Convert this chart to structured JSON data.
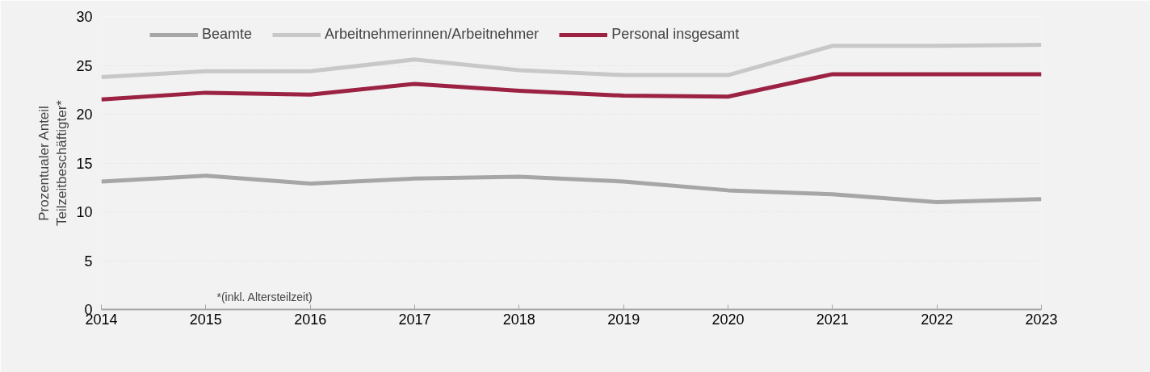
{
  "chart_data": {
    "type": "line",
    "ylabel": "Prozentualer Anteil\nTeilzeitbeschäftigter*",
    "x": [
      2014,
      2015,
      2016,
      2017,
      2018,
      2019,
      2020,
      2021,
      2022,
      2023
    ],
    "series": [
      {
        "name": "Beamte",
        "color": "#a6a6a6",
        "values": [
          13.1,
          13.7,
          12.9,
          13.4,
          13.6,
          13.1,
          12.2,
          11.8,
          11.0,
          11.3
        ]
      },
      {
        "name": "Arbeitnehmerinnen/Arbeitnehmer",
        "color": "#c8c8c8",
        "values": [
          23.8,
          24.4,
          24.4,
          25.6,
          24.5,
          24.0,
          24.0,
          27.0,
          27.0,
          27.1
        ]
      },
      {
        "name": "Personal insgesamt",
        "color": "#9b2242",
        "values": [
          21.5,
          22.2,
          22.0,
          23.1,
          22.4,
          21.9,
          21.8,
          24.1,
          24.1,
          24.1
        ]
      }
    ],
    "xlim": [
      2014,
      2023
    ],
    "xticks": [
      2014,
      2015,
      2016,
      2017,
      2018,
      2019,
      2020,
      2021,
      2022,
      2023
    ],
    "ylim": [
      0,
      30
    ],
    "yticks": [
      0,
      5,
      10,
      15,
      20,
      25,
      30
    ],
    "grid": "y",
    "legend": "top",
    "marker": "none",
    "line_style": "solid",
    "annotations": [
      "*(inkl. Altersteilzeit)"
    ]
  }
}
